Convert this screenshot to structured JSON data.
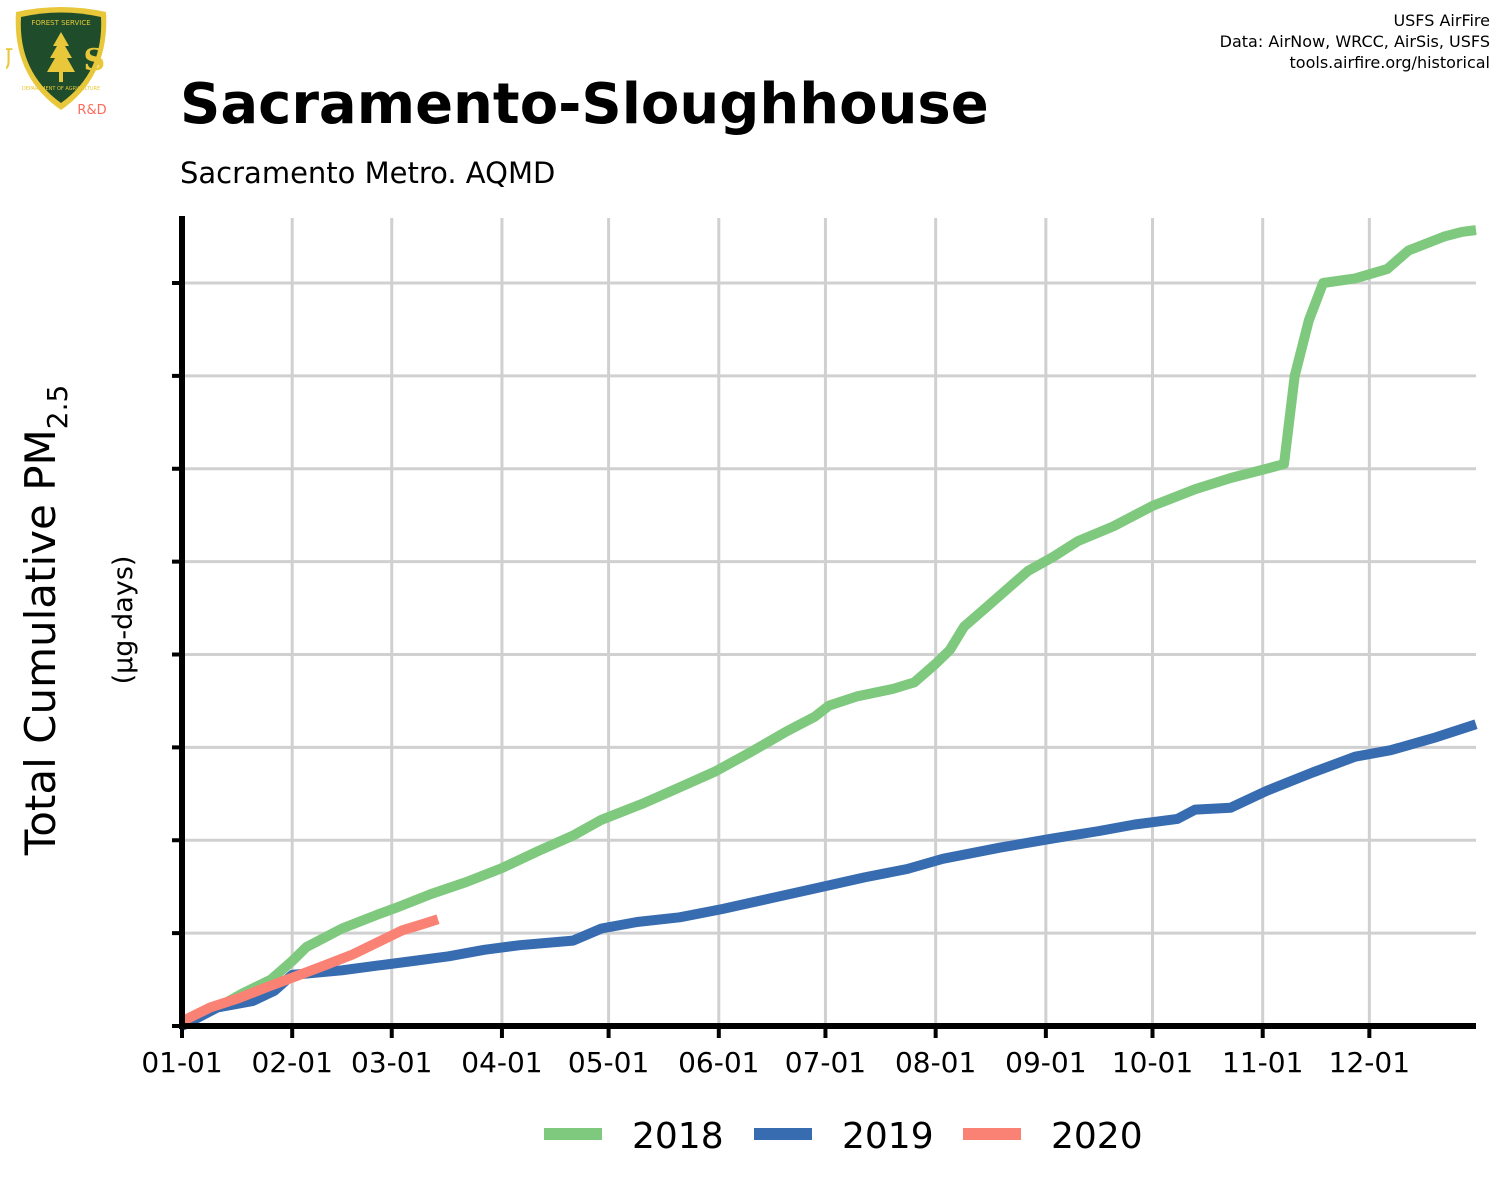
{
  "header": {
    "title": "Sacramento-Sloughhouse",
    "subtitle": "Sacramento Metro. AQMD",
    "credits": [
      "USFS AirFire",
      "Data: AirNow, WRCC, AirSis, USFS",
      "tools.airfire.org/historical"
    ]
  },
  "logo": {
    "top_text": "FOREST SERVICE",
    "letters": "U S",
    "bottom_text": "DEPARTMENT OF AGRICULTURE",
    "rd_text": "R&D",
    "colors": {
      "shield": "#1f4d2b",
      "rim": "#e8c83a",
      "rd": "#ff6a5a"
    }
  },
  "chart_data": {
    "type": "line",
    "title": "Sacramento-Sloughhouse",
    "subtitle": "Sacramento Metro. AQMD",
    "ylabel_main": "Total Cumulative PM",
    "ylabel_sub": "2.5",
    "ylabel_unit": "(µg-days)",
    "x_tick_labels": [
      "01-01",
      "02-01",
      "03-01",
      "04-01",
      "05-01",
      "06-01",
      "07-01",
      "08-01",
      "09-01",
      "10-01",
      "11-01",
      "12-01"
    ],
    "x_tick_days": [
      0,
      31,
      59,
      90,
      120,
      151,
      181,
      212,
      243,
      273,
      304,
      334
    ],
    "xlim": [
      0,
      364
    ],
    "ylim": [
      0,
      8.7
    ],
    "y_gridlines": [
      1,
      2,
      3,
      4,
      5,
      6,
      7,
      8
    ],
    "y_tick_labels_shown": false,
    "grid": true,
    "legend_position": "bottom",
    "series": [
      {
        "name": "2018",
        "color": "#7fc97f",
        "points": [
          [
            0,
            0.05
          ],
          [
            10,
            0.2
          ],
          [
            17,
            0.35
          ],
          [
            25,
            0.5
          ],
          [
            31,
            0.7
          ],
          [
            35,
            0.85
          ],
          [
            40,
            0.95
          ],
          [
            45,
            1.05
          ],
          [
            55,
            1.2
          ],
          [
            60,
            1.27
          ],
          [
            70,
            1.42
          ],
          [
            80,
            1.55
          ],
          [
            90,
            1.7
          ],
          [
            100,
            1.88
          ],
          [
            110,
            2.05
          ],
          [
            118,
            2.22
          ],
          [
            130,
            2.4
          ],
          [
            140,
            2.57
          ],
          [
            150,
            2.74
          ],
          [
            160,
            2.95
          ],
          [
            170,
            3.17
          ],
          [
            178,
            3.33
          ],
          [
            182,
            3.45
          ],
          [
            190,
            3.55
          ],
          [
            200,
            3.63
          ],
          [
            206,
            3.7
          ],
          [
            212,
            3.9
          ],
          [
            216,
            4.05
          ],
          [
            220,
            4.3
          ],
          [
            226,
            4.5
          ],
          [
            232,
            4.7
          ],
          [
            238,
            4.9
          ],
          [
            245,
            5.05
          ],
          [
            252,
            5.22
          ],
          [
            262,
            5.38
          ],
          [
            273,
            5.6
          ],
          [
            285,
            5.78
          ],
          [
            295,
            5.9
          ],
          [
            305,
            6.0
          ],
          [
            310,
            6.05
          ],
          [
            313,
            7.0
          ],
          [
            317,
            7.6
          ],
          [
            321,
            8.0
          ],
          [
            330,
            8.05
          ],
          [
            339,
            8.15
          ],
          [
            345,
            8.35
          ],
          [
            355,
            8.5
          ],
          [
            360,
            8.55
          ],
          [
            364,
            8.57
          ]
        ]
      },
      {
        "name": "2019",
        "color": "#386cb0",
        "points": [
          [
            0,
            0.0
          ],
          [
            10,
            0.2
          ],
          [
            20,
            0.27
          ],
          [
            26,
            0.38
          ],
          [
            31,
            0.55
          ],
          [
            45,
            0.6
          ],
          [
            55,
            0.65
          ],
          [
            65,
            0.7
          ],
          [
            75,
            0.75
          ],
          [
            85,
            0.82
          ],
          [
            95,
            0.87
          ],
          [
            110,
            0.92
          ],
          [
            118,
            1.05
          ],
          [
            128,
            1.12
          ],
          [
            140,
            1.17
          ],
          [
            152,
            1.26
          ],
          [
            165,
            1.37
          ],
          [
            178,
            1.48
          ],
          [
            192,
            1.6
          ],
          [
            204,
            1.69
          ],
          [
            214,
            1.8
          ],
          [
            230,
            1.92
          ],
          [
            245,
            2.02
          ],
          [
            258,
            2.1
          ],
          [
            268,
            2.17
          ],
          [
            280,
            2.23
          ],
          [
            285,
            2.33
          ],
          [
            295,
            2.35
          ],
          [
            305,
            2.53
          ],
          [
            318,
            2.73
          ],
          [
            330,
            2.9
          ],
          [
            340,
            2.97
          ],
          [
            352,
            3.1
          ],
          [
            364,
            3.25
          ]
        ]
      },
      {
        "name": "2020",
        "color": "#f98274",
        "points": [
          [
            0,
            0.05
          ],
          [
            8,
            0.2
          ],
          [
            16,
            0.3
          ],
          [
            24,
            0.42
          ],
          [
            31,
            0.52
          ],
          [
            40,
            0.65
          ],
          [
            48,
            0.77
          ],
          [
            55,
            0.9
          ],
          [
            62,
            1.03
          ],
          [
            68,
            1.1
          ],
          [
            72,
            1.15
          ]
        ]
      }
    ]
  }
}
